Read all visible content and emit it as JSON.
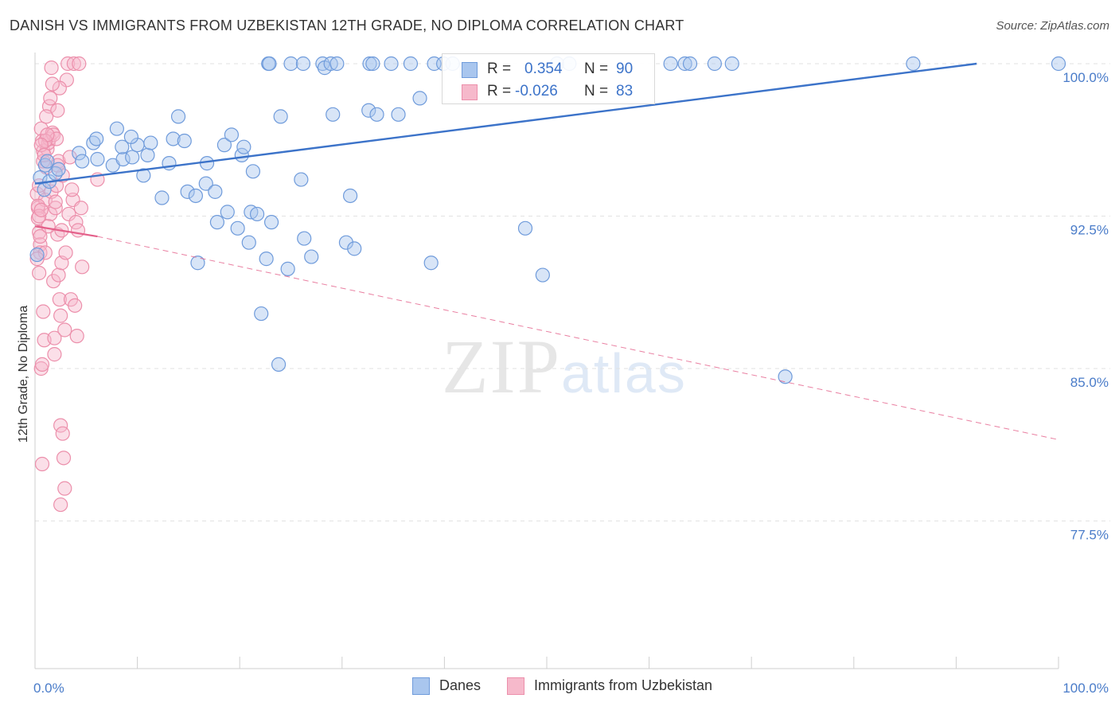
{
  "title": "DANISH VS IMMIGRANTS FROM UZBEKISTAN 12TH GRADE, NO DIPLOMA CORRELATION CHART",
  "source": "Source: ZipAtlas.com",
  "watermark": {
    "zip": "ZIP",
    "atlas": "atlas"
  },
  "legend": {
    "danes": {
      "r_label": "R =",
      "r_value": "0.354",
      "n_label": "N =",
      "n_value": "90"
    },
    "uzbek": {
      "r_label": "R =",
      "r_value": "-0.026",
      "n_label": "N =",
      "n_value": "83"
    }
  },
  "bottom_legend": {
    "danes": "Danes",
    "uzbek": "Immigrants from Uzbekistan"
  },
  "colors": {
    "danes_fill": "#a9c6ee",
    "danes_stroke": "#6f9bdb",
    "danes_line": "#3c73c9",
    "uzbek_fill": "#f6b9cb",
    "uzbek_stroke": "#ec8fab",
    "uzbek_line": "#e4608a",
    "grid": "#e2e2e2",
    "tick_text": "#4a7cc9"
  },
  "chart_data": {
    "type": "scatter",
    "title": "DANISH VS IMMIGRANTS FROM UZBEKISTAN 12TH GRADE, NO DIPLOMA CORRELATION CHART",
    "xlabel": "",
    "ylabel": "12th Grade, No Diploma",
    "xlim": [
      0,
      100
    ],
    "ylim": [
      70,
      100.8
    ],
    "y_ticks": [
      {
        "value": 100,
        "label": "100.0%"
      },
      {
        "value": 92.5,
        "label": "92.5%"
      },
      {
        "value": 85,
        "label": "85.0%"
      },
      {
        "value": 77.5,
        "label": "77.5%"
      }
    ],
    "x_tick_labels": [
      {
        "value": 0,
        "label": "0.0%"
      },
      {
        "value": 100,
        "label": "100.0%"
      }
    ],
    "grid": true,
    "series": [
      {
        "name": "Danes",
        "trend": {
          "x": [
            0,
            92
          ],
          "y": [
            94.1,
            100.0
          ],
          "style": "solid"
        },
        "points": [
          [
            0.2,
            90.6
          ],
          [
            0.5,
            94.4
          ],
          [
            0.9,
            93.8
          ],
          [
            1.0,
            95.0
          ],
          [
            1.2,
            95.2
          ],
          [
            1.4,
            94.2
          ],
          [
            2.0,
            94.6
          ],
          [
            2.3,
            94.8
          ],
          [
            4.3,
            95.6
          ],
          [
            4.6,
            95.2
          ],
          [
            5.7,
            96.1
          ],
          [
            6.1,
            95.3
          ],
          [
            6.0,
            96.3
          ],
          [
            7.6,
            95.0
          ],
          [
            8.0,
            96.8
          ],
          [
            8.6,
            95.3
          ],
          [
            8.5,
            95.9
          ],
          [
            9.5,
            95.4
          ],
          [
            10.0,
            96.0
          ],
          [
            11.0,
            95.5
          ],
          [
            9.4,
            96.4
          ],
          [
            10.6,
            94.5
          ],
          [
            11.3,
            96.1
          ],
          [
            12.4,
            93.4
          ],
          [
            13.1,
            95.1
          ],
          [
            13.5,
            96.3
          ],
          [
            14.0,
            97.4
          ],
          [
            14.6,
            96.2
          ],
          [
            14.9,
            93.7
          ],
          [
            15.7,
            93.5
          ],
          [
            15.9,
            90.2
          ],
          [
            16.7,
            94.1
          ],
          [
            16.8,
            95.1
          ],
          [
            17.6,
            93.7
          ],
          [
            17.8,
            92.2
          ],
          [
            18.5,
            96.0
          ],
          [
            18.8,
            92.7
          ],
          [
            19.2,
            96.5
          ],
          [
            19.8,
            91.9
          ],
          [
            20.2,
            95.5
          ],
          [
            20.4,
            95.9
          ],
          [
            20.9,
            91.2
          ],
          [
            21.3,
            94.7
          ],
          [
            21.1,
            92.7
          ],
          [
            21.7,
            92.6
          ],
          [
            22.1,
            87.7
          ],
          [
            22.6,
            90.4
          ],
          [
            23.1,
            92.2
          ],
          [
            22.8,
            100.0
          ],
          [
            22.9,
            100.0
          ],
          [
            24.0,
            97.4
          ],
          [
            23.8,
            85.2
          ],
          [
            24.7,
            89.9
          ],
          [
            25.0,
            100.0
          ],
          [
            26.2,
            100.0
          ],
          [
            26.0,
            94.3
          ],
          [
            26.3,
            91.4
          ],
          [
            27.0,
            90.5
          ],
          [
            28.1,
            100.0
          ],
          [
            28.3,
            99.8
          ],
          [
            28.9,
            100.0
          ],
          [
            29.1,
            97.5
          ],
          [
            29.5,
            100.0
          ],
          [
            30.4,
            91.2
          ],
          [
            30.8,
            93.5
          ],
          [
            31.2,
            90.9
          ],
          [
            32.6,
            97.7
          ],
          [
            32.7,
            100.0
          ],
          [
            33.0,
            100.0
          ],
          [
            33.4,
            97.5
          ],
          [
            34.8,
            100.0
          ],
          [
            35.5,
            97.5
          ],
          [
            36.7,
            100.0
          ],
          [
            37.6,
            98.3
          ],
          [
            38.7,
            90.2
          ],
          [
            39.0,
            100.0
          ],
          [
            39.9,
            100.0
          ],
          [
            40.8,
            100.0
          ],
          [
            47.9,
            91.9
          ],
          [
            49.6,
            89.6
          ],
          [
            51.0,
            100.0
          ],
          [
            52.2,
            100.0
          ],
          [
            62.1,
            100.0
          ],
          [
            63.5,
            100.0
          ],
          [
            64.0,
            100.0
          ],
          [
            66.4,
            100.0
          ],
          [
            68.1,
            100.0
          ],
          [
            73.3,
            84.6
          ],
          [
            85.8,
            100.0
          ],
          [
            100.0,
            100.0
          ]
        ]
      },
      {
        "name": "Immigrants from Uzbekistan",
        "trend": {
          "x": [
            0,
            6.1,
            100
          ],
          "y": [
            92.0,
            91.5,
            81.5
          ],
          "style": "solid-then-dashed"
        },
        "points": [
          [
            0.2,
            93.6
          ],
          [
            0.3,
            92.9
          ],
          [
            0.3,
            92.4
          ],
          [
            0.4,
            91.7
          ],
          [
            0.5,
            91.1
          ],
          [
            0.5,
            90.7
          ],
          [
            0.4,
            94.0
          ],
          [
            0.6,
            96.8
          ],
          [
            0.7,
            96.2
          ],
          [
            0.8,
            95.7
          ],
          [
            0.6,
            85.0
          ],
          [
            0.7,
            85.2
          ],
          [
            0.7,
            80.3
          ],
          [
            0.8,
            87.8
          ],
          [
            0.9,
            86.4
          ],
          [
            1.0,
            90.7
          ],
          [
            1.0,
            93.3
          ],
          [
            1.1,
            94.9
          ],
          [
            1.2,
            95.8
          ],
          [
            1.3,
            96.1
          ],
          [
            1.4,
            96.3
          ],
          [
            1.4,
            97.9
          ],
          [
            1.5,
            98.3
          ],
          [
            1.5,
            92.6
          ],
          [
            1.6,
            93.7
          ],
          [
            1.7,
            96.6
          ],
          [
            1.8,
            96.5
          ],
          [
            1.8,
            89.3
          ],
          [
            1.9,
            86.5
          ],
          [
            1.9,
            85.7
          ],
          [
            2.0,
            92.9
          ],
          [
            2.0,
            93.2
          ],
          [
            2.1,
            96.3
          ],
          [
            2.1,
            94.0
          ],
          [
            2.2,
            91.6
          ],
          [
            2.2,
            97.7
          ],
          [
            2.3,
            95.2
          ],
          [
            2.3,
            89.6
          ],
          [
            2.4,
            88.4
          ],
          [
            2.5,
            87.6
          ],
          [
            2.5,
            82.2
          ],
          [
            2.5,
            78.3
          ],
          [
            2.6,
            90.2
          ],
          [
            2.6,
            91.8
          ],
          [
            2.7,
            94.5
          ],
          [
            2.7,
            81.8
          ],
          [
            2.8,
            80.6
          ],
          [
            2.9,
            79.1
          ],
          [
            2.9,
            86.9
          ],
          [
            3.0,
            90.7
          ],
          [
            3.1,
            99.2
          ],
          [
            3.2,
            100.0
          ],
          [
            3.3,
            92.6
          ],
          [
            3.4,
            95.4
          ],
          [
            3.5,
            88.4
          ],
          [
            3.7,
            93.3
          ],
          [
            3.8,
            100.0
          ],
          [
            3.9,
            88.1
          ],
          [
            4.0,
            92.2
          ],
          [
            4.1,
            86.6
          ],
          [
            4.2,
            91.8
          ],
          [
            4.3,
            100.0
          ],
          [
            4.5,
            92.9
          ],
          [
            4.6,
            90.0
          ],
          [
            6.1,
            94.3
          ],
          [
            0.3,
            93.0
          ],
          [
            0.4,
            92.5
          ],
          [
            0.5,
            91.5
          ],
          [
            0.8,
            95.2
          ],
          [
            1.0,
            96.2
          ],
          [
            1.2,
            96.5
          ],
          [
            0.6,
            96.0
          ],
          [
            0.9,
            95.5
          ],
          [
            1.3,
            92.0
          ],
          [
            1.6,
            99.8
          ],
          [
            1.1,
            97.4
          ],
          [
            2.4,
            98.8
          ],
          [
            3.6,
            93.8
          ],
          [
            0.2,
            90.4
          ],
          [
            0.6,
            92.8
          ],
          [
            1.7,
            99.0
          ],
          [
            2.2,
            95.0
          ],
          [
            0.4,
            89.7
          ]
        ]
      }
    ]
  }
}
